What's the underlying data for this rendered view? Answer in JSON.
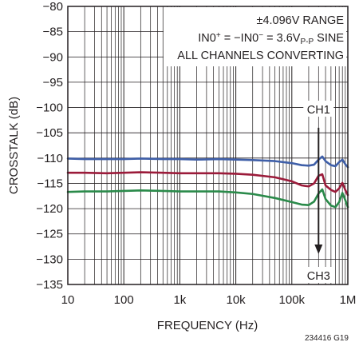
{
  "chart_data": {
    "type": "line",
    "xlabel": "FREQUENCY (Hz)",
    "ylabel": "CROSSTALK (dB)",
    "x_scale": "log",
    "xlim": [
      10,
      1000000
    ],
    "ylim": [
      -135,
      -80
    ],
    "grid": true,
    "x_ticks": [
      10,
      100,
      1000,
      10000,
      100000,
      1000000
    ],
    "x_tick_labels": [
      "10",
      "100",
      "1k",
      "10k",
      "100k",
      "1M"
    ],
    "y_ticks": [
      -80,
      -85,
      -90,
      -95,
      -100,
      -105,
      -110,
      -115,
      -120,
      -125,
      -130,
      -135
    ],
    "y_tick_labels": [
      "−80",
      "−85",
      "−90",
      "−95",
      "−100",
      "−105",
      "−110",
      "−115",
      "−120",
      "−125",
      "−130",
      "−135"
    ],
    "annotation": {
      "line1": "±4.096V RANGE",
      "line2_a": "IN0",
      "line2_b": "+",
      "line2_c": " = −IN0",
      "line2_d": "−",
      "line2_e": " = 3.6V",
      "line2_f": "P-P",
      "line2_g": " SINE",
      "line3": "ALL CHANNELS CONVERTING"
    },
    "arrow": {
      "from_label": "CH1",
      "to_label": "CH3",
      "x": 300000,
      "y_start": -104,
      "y_end": -129
    },
    "figure_code": "234416 G19",
    "series": [
      {
        "color": "#3f5fa8",
        "x": [
          10,
          20,
          50,
          100,
          200,
          500,
          1000,
          2000,
          5000,
          10000,
          20000,
          50000,
          100000,
          150000,
          200000,
          250000,
          300000,
          350000,
          400000,
          500000,
          600000,
          700000,
          800000,
          900000,
          1000000
        ],
        "y": [
          -110.1,
          -110.2,
          -110.2,
          -110.2,
          -110.1,
          -110.2,
          -110.2,
          -110.3,
          -110.2,
          -110.3,
          -110.4,
          -110.6,
          -111.0,
          -111.4,
          -111.5,
          -111.3,
          -110.3,
          -109.7,
          -110.6,
          -111.4,
          -111.6,
          -110.8,
          -110.3,
          -111.2,
          -111.8
        ]
      },
      {
        "color": "#9b1b3a",
        "x": [
          10,
          20,
          50,
          100,
          200,
          500,
          1000,
          2000,
          5000,
          10000,
          20000,
          50000,
          100000,
          150000,
          200000,
          250000,
          300000,
          350000,
          400000,
          500000,
          600000,
          700000,
          800000,
          900000,
          1000000
        ],
        "y": [
          -112.9,
          -112.9,
          -113.0,
          -112.9,
          -112.8,
          -112.9,
          -113.0,
          -113.0,
          -113.0,
          -113.1,
          -113.3,
          -113.8,
          -114.6,
          -115.4,
          -115.6,
          -115.0,
          -113.5,
          -113.2,
          -115.4,
          -116.3,
          -116.7,
          -116.0,
          -114.9,
          -116.3,
          -117.3
        ]
      },
      {
        "color": "#2a8a4a",
        "x": [
          10,
          20,
          50,
          100,
          200,
          500,
          1000,
          2000,
          5000,
          10000,
          20000,
          50000,
          100000,
          150000,
          200000,
          250000,
          300000,
          350000,
          400000,
          500000,
          600000,
          700000,
          800000,
          900000,
          1000000
        ],
        "y": [
          -116.7,
          -116.6,
          -116.6,
          -116.5,
          -116.4,
          -116.5,
          -116.6,
          -116.6,
          -116.6,
          -116.8,
          -117.1,
          -117.9,
          -118.7,
          -119.2,
          -119.3,
          -118.6,
          -117.0,
          -116.2,
          -118.1,
          -119.4,
          -119.7,
          -118.7,
          -116.9,
          -118.3,
          -119.7
        ]
      }
    ]
  }
}
